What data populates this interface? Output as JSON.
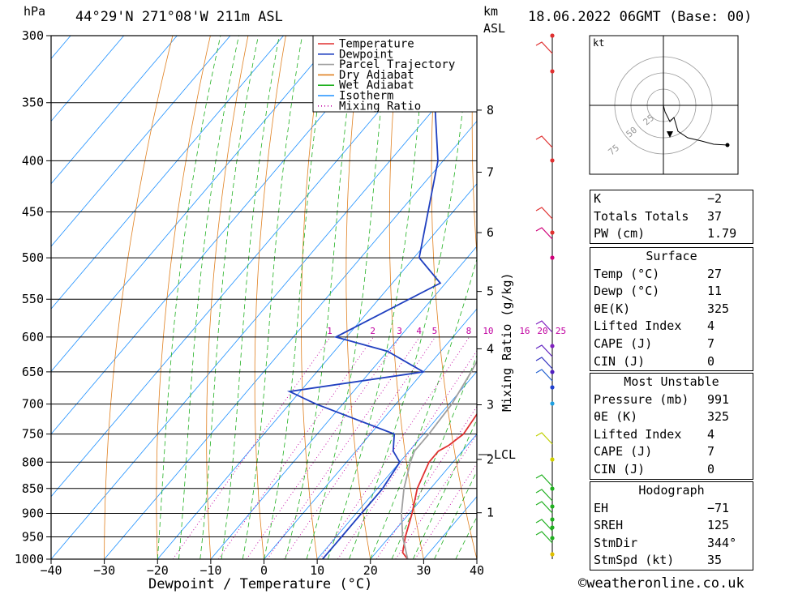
{
  "header": {
    "location": "44°29'N 271°08'W 211m ASL",
    "datetime": "18.06.2022 06GMT (Base: 00)",
    "pressure_unit": "hPa",
    "height_unit_top": "km",
    "height_unit_bottom": "ASL"
  },
  "chart_data": {
    "type": "line",
    "title": "",
    "xlabel": "Dewpoint / Temperature (°C)",
    "ylabel_left": "hPa",
    "ylabel_right": "Mixing Ratio (g/kg)",
    "x_ticks": [
      -40,
      -30,
      -20,
      -10,
      0,
      10,
      20,
      30,
      40
    ],
    "x_tick_labels": [
      "−40",
      "−30",
      "−20",
      "−10",
      "0",
      "10",
      "20",
      "30",
      "40"
    ],
    "pressure_levels": [
      300,
      350,
      400,
      450,
      500,
      550,
      600,
      650,
      700,
      750,
      800,
      850,
      900,
      950,
      1000
    ],
    "xlim": [
      -40,
      40
    ],
    "ylim": [
      1000,
      300
    ],
    "height_ticks_km": [
      1,
      2,
      3,
      4,
      5,
      6,
      7,
      8
    ],
    "lcl_label": "LCL",
    "lcl_pressure": 780,
    "mixing_ratio_labels": [
      "1",
      "2",
      "3",
      "4",
      "5",
      "8",
      "10",
      "16",
      "20",
      "25"
    ],
    "legend": [
      "Temperature",
      "Dewpoint",
      "Parcel Trajectory",
      "Dry Adiabat",
      "Wet Adiabat",
      "Isotherm",
      "Mixing Ratio"
    ],
    "legend_position": "top",
    "series": [
      {
        "name": "Temperature",
        "color": "#e03030",
        "points": [
          [
            1000,
            27
          ],
          [
            985,
            25
          ],
          [
            950,
            23
          ],
          [
            900,
            20.5
          ],
          [
            850,
            17.5
          ],
          [
            800,
            15.5
          ],
          [
            780,
            15.5
          ],
          [
            770,
            16.5
          ],
          [
            750,
            17.5
          ],
          [
            700,
            16.5
          ],
          [
            650,
            14.5
          ],
          [
            620,
            13.5
          ],
          [
            600,
            11.5
          ],
          [
            550,
            6.5
          ],
          [
            500,
            0.5
          ],
          [
            450,
            -6.5
          ],
          [
            400,
            -14.5
          ],
          [
            350,
            -23.5
          ],
          [
            300,
            -33.5
          ]
        ]
      },
      {
        "name": "Dewpoint",
        "color": "#2040c0",
        "points": [
          [
            1000,
            11
          ],
          [
            990,
            11
          ],
          [
            950,
            11
          ],
          [
            900,
            11
          ],
          [
            850,
            11
          ],
          [
            800,
            10
          ],
          [
            780,
            7
          ],
          [
            750,
            4.5
          ],
          [
            700,
            -15
          ],
          [
            680,
            -22
          ],
          [
            650,
            0
          ],
          [
            620,
            -10
          ],
          [
            600,
            -22
          ],
          [
            530,
            -11
          ],
          [
            500,
            -19
          ],
          [
            400,
            -31
          ],
          [
            340,
            -43
          ],
          [
            300,
            -51
          ]
        ]
      },
      {
        "name": "Parcel Trajectory",
        "color": "#a0a0a0",
        "points": [
          [
            1000,
            27
          ],
          [
            950,
            22.5
          ],
          [
            900,
            18.5
          ],
          [
            850,
            15
          ],
          [
            800,
            12
          ],
          [
            780,
            11
          ],
          [
            750,
            11
          ],
          [
            700,
            10.5
          ],
          [
            650,
            9
          ],
          [
            600,
            7
          ],
          [
            550,
            4
          ],
          [
            500,
            0
          ],
          [
            450,
            -5.5
          ],
          [
            400,
            -12.5
          ],
          [
            350,
            -21
          ],
          [
            300,
            -32
          ]
        ]
      }
    ]
  },
  "hodograph": {
    "unit": "kt",
    "ring_labels": [
      "25",
      "50",
      "75"
    ]
  },
  "indices_table": {
    "general": [
      {
        "k": "K",
        "v": "−2"
      },
      {
        "k": "Totals Totals",
        "v": "37"
      },
      {
        "k": "PW (cm)",
        "v": "1.79"
      }
    ],
    "surface_title": "Surface",
    "surface": [
      {
        "k": "Temp (°C)",
        "v": "27"
      },
      {
        "k": "Dewp (°C)",
        "v": "11"
      },
      {
        "k": "θE(K)",
        "v": "325"
      },
      {
        "k": "Lifted Index",
        "v": "4"
      },
      {
        "k": "CAPE (J)",
        "v": "7"
      },
      {
        "k": "CIN (J)",
        "v": "0"
      }
    ],
    "mu_title": "Most Unstable",
    "mu": [
      {
        "k": "Pressure (mb)",
        "v": "991"
      },
      {
        "k": "θE (K)",
        "v": "325"
      },
      {
        "k": "Lifted Index",
        "v": "4"
      },
      {
        "k": "CAPE (J)",
        "v": "7"
      },
      {
        "k": "CIN (J)",
        "v": "0"
      }
    ],
    "hodo_title": "Hodograph",
    "hodo": [
      {
        "k": "EH",
        "v": "−71"
      },
      {
        "k": "SREH",
        "v": "125"
      },
      {
        "k": "StmDir",
        "v": "344°"
      },
      {
        "k": "StmSpd (kt)",
        "v": "35"
      }
    ]
  },
  "credit": "©weatheronline.co.uk"
}
